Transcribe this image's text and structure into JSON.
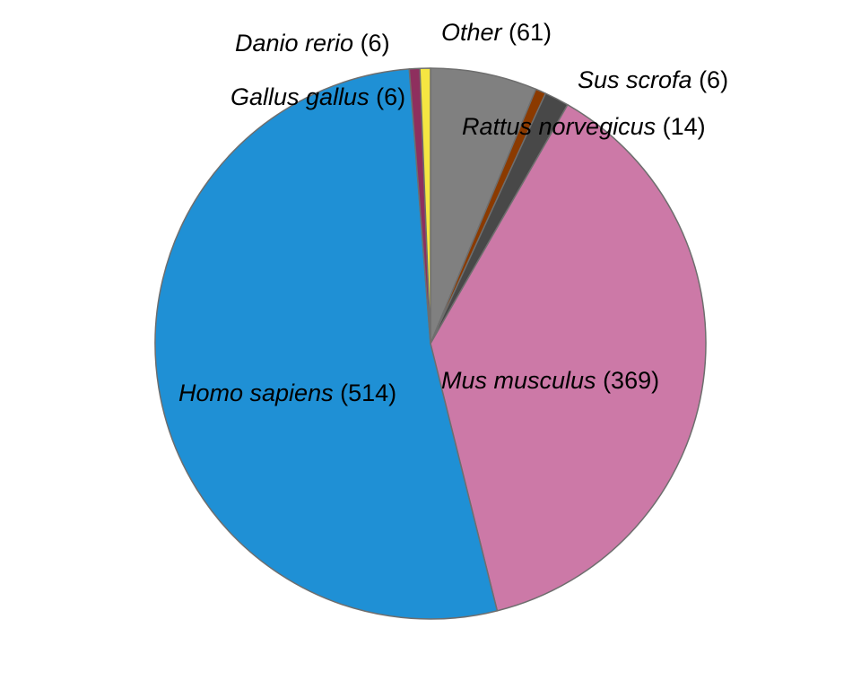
{
  "chart_data": {
    "type": "pie",
    "start": "12 o'clock",
    "direction": "clockwise",
    "slices": [
      {
        "name": "Other",
        "value": 61,
        "color": "#808080"
      },
      {
        "name": "Sus scrofa",
        "value": 6,
        "color": "#8B3A00"
      },
      {
        "name": "Rattus norvegicus",
        "value": 14,
        "color": "#484848"
      },
      {
        "name": "Mus musculus",
        "value": 369,
        "color": "#CC79A7"
      },
      {
        "name": "Homo sapiens",
        "value": 514,
        "color": "#1F90D5"
      },
      {
        "name": "Danio rerio",
        "value": 6,
        "color": "#8E2F5E"
      },
      {
        "name": "Gallus gallus",
        "value": 6,
        "color": "#F5E642"
      }
    ]
  }
}
